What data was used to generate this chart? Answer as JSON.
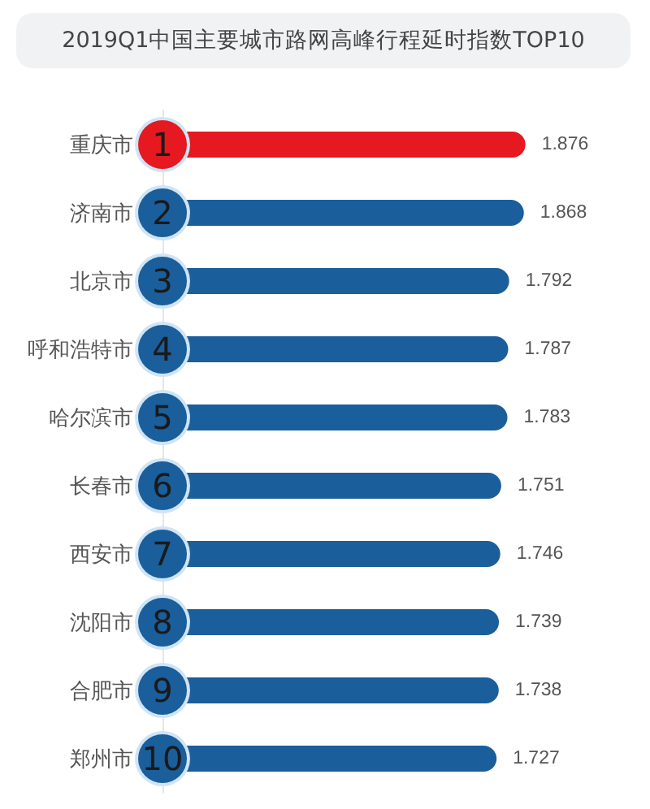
{
  "chart_data": {
    "type": "bar",
    "orientation": "horizontal",
    "title": "2019Q1中国主要城市路网高峰行程延时指数TOP10",
    "categories": [
      "重庆市",
      "济南市",
      "北京市",
      "呼和浩特市",
      "哈尔滨市",
      "长春市",
      "西安市",
      "沈阳市",
      "合肥市",
      "郑州市"
    ],
    "values": [
      1.876,
      1.868,
      1.792,
      1.787,
      1.783,
      1.751,
      1.746,
      1.739,
      1.738,
      1.727
    ],
    "colors": [
      "#e5191f",
      "#1a5e9c",
      "#1a5e9c",
      "#1a5e9c",
      "#1a5e9c",
      "#1a5e9c",
      "#1a5e9c",
      "#1a5e9c",
      "#1a5e9c",
      "#1a5e9c"
    ],
    "data_labels": true,
    "annotations": [
      {
        "text": "1",
        "y": "重庆市"
      },
      {
        "text": "2",
        "y": "济南市"
      },
      {
        "text": "3",
        "y": "北京市"
      },
      {
        "text": "4",
        "y": "呼和浩特市"
      },
      {
        "text": "5",
        "y": "哈尔滨市"
      },
      {
        "text": "6",
        "y": "长春市"
      },
      {
        "text": "7",
        "y": "西安市"
      },
      {
        "text": "8",
        "y": "沈阳市"
      },
      {
        "text": "9",
        "y": "合肥市"
      },
      {
        "text": "10",
        "y": "郑州市"
      }
    ]
  }
}
